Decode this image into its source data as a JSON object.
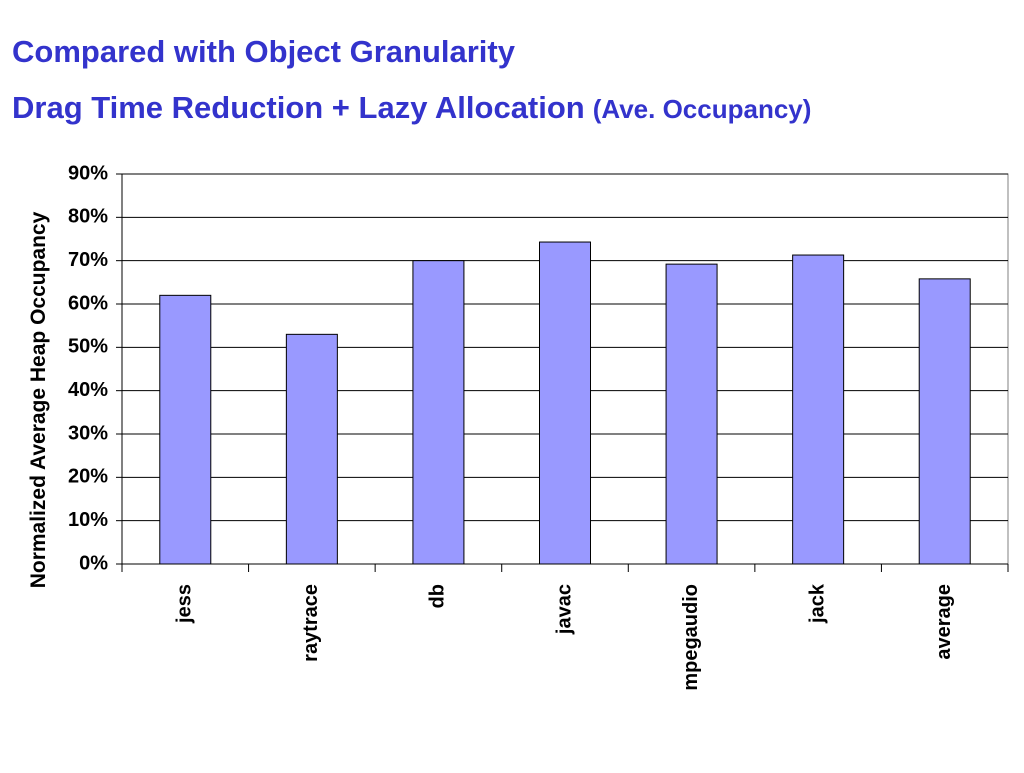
{
  "chart_data": {
    "type": "bar",
    "title": "Compared with Object Granularity",
    "subtitle": "Drag Time Reduction + Lazy Allocation",
    "subtitle_note": "(Ave. Occupancy)",
    "y_label": "Normalized Average Heap Occupancy",
    "categories": [
      "jess",
      "raytrace",
      "db",
      "javac",
      "mpegaudio",
      "jack",
      "average"
    ],
    "values": [
      62,
      53,
      70,
      74.3,
      69.2,
      71.3,
      65.8
    ],
    "color": "#9999ff",
    "ylim": [
      0,
      90
    ],
    "yticks": [
      {
        "value": 0,
        "label": "0%"
      },
      {
        "value": 10,
        "label": "10%"
      },
      {
        "value": 20,
        "label": "20%"
      },
      {
        "value": 30,
        "label": "30%"
      },
      {
        "value": 40,
        "label": "40%"
      },
      {
        "value": 50,
        "label": "50%"
      },
      {
        "value": 60,
        "label": "60%"
      },
      {
        "value": 70,
        "label": "70%"
      },
      {
        "value": 80,
        "label": "80%"
      },
      {
        "value": 90,
        "label": "90%"
      }
    ],
    "grid": true
  }
}
